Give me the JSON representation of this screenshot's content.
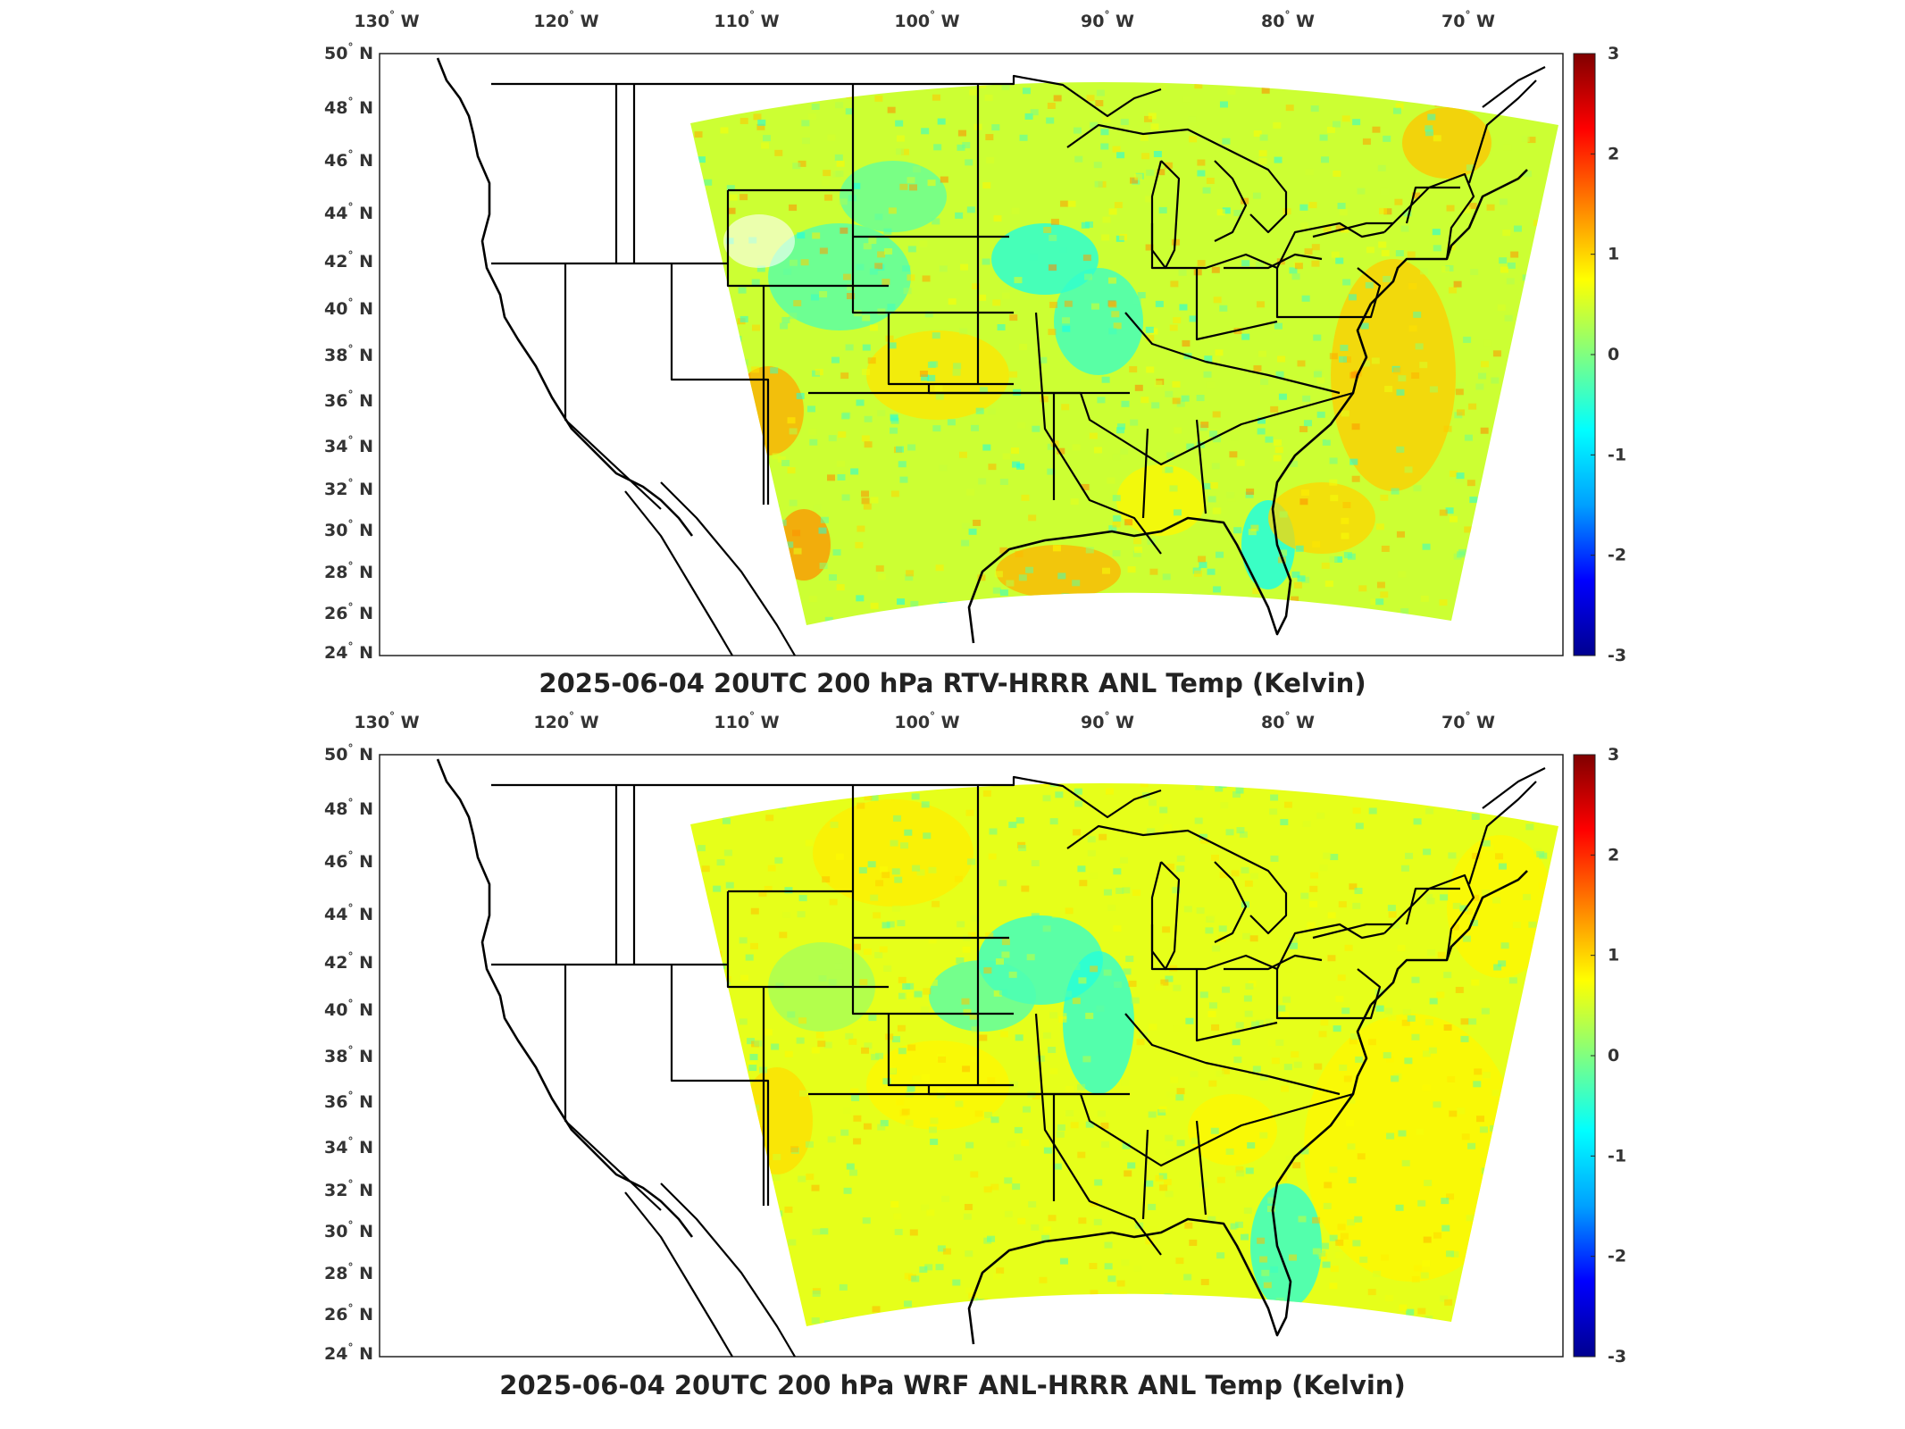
{
  "colormap": {
    "name": "jet",
    "stops": [
      "#00008f",
      "#0000ff",
      "#00a0ff",
      "#00ffff",
      "#80ff80",
      "#ffff00",
      "#ff8000",
      "#ff0000",
      "#800000"
    ]
  },
  "lon_labels": [
    "130",
    "120",
    "110",
    "100",
    "90",
    "80",
    "70"
  ],
  "lon_suffix": "W",
  "lat_labels": [
    "50",
    "48",
    "46",
    "44",
    "42",
    "40",
    "38",
    "36",
    "34",
    "32",
    "30",
    "28",
    "26",
    "24"
  ],
  "lat_suffix": "N",
  "colorbar_ticks": [
    "3",
    "2",
    "1",
    "0",
    "-1",
    "-2",
    "-3"
  ],
  "panels": [
    {
      "title": "2025-06-04 20UTC 200 hPa RTV-HRRR ANL Temp (Kelvin)",
      "field_summary": {
        "mean_K": 0.5,
        "warm_regions": [
          "Gulf of Mexico (Louisiana coast)",
          "Atlantic off Mid-Atlantic coast",
          "Arizona / New Mexico border",
          "West Texas",
          "Maine"
        ],
        "cool_regions": [
          "Iowa",
          "Missouri",
          "Idaho / Montana",
          "Florida peninsula"
        ]
      }
    },
    {
      "title": "2025-06-04 20UTC 200 hPa WRF ANL-HRRR ANL Temp (Kelvin)",
      "field_summary": {
        "mean_K": 0.6,
        "warm_regions": [
          "Southwest US",
          "Atlantic Ocean",
          "Northern Plains"
        ],
        "cool_regions": [
          "Iowa",
          "Illinois",
          "South Dakota",
          "Florida peninsula"
        ]
      }
    }
  ]
}
